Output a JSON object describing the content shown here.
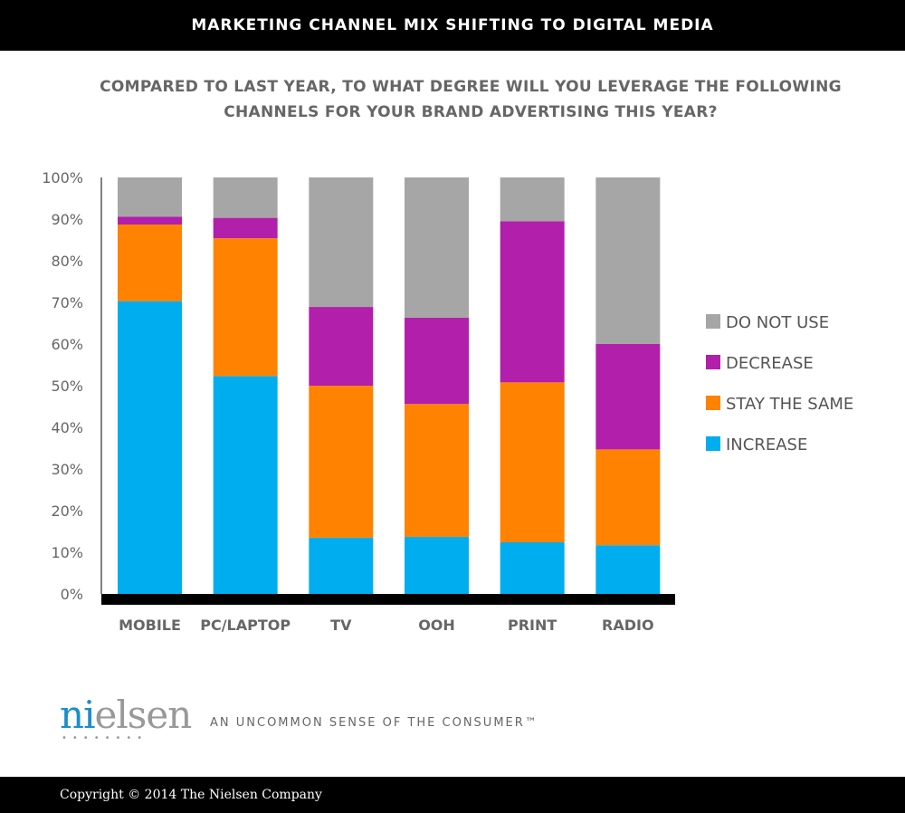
{
  "header": {
    "title": "MARKETING CHANNEL MIX SHIFTING TO DIGITAL MEDIA"
  },
  "chart_data": {
    "type": "bar",
    "stacked": true,
    "title": "COMPARED TO LAST YEAR, TO WHAT DEGREE WILL YOU LEVERAGE THE FOLLOWING CHANNELS FOR YOUR BRAND ADVERTISING THIS YEAR?",
    "xlabel": "",
    "ylabel": "",
    "ylim": [
      0,
      100
    ],
    "yticks": [
      "0%",
      "10%",
      "20%",
      "30%",
      "40%",
      "50%",
      "60%",
      "70%",
      "80%",
      "90%",
      "100%"
    ],
    "categories": [
      "MOBILE",
      "PC/LAPTOP",
      "TV",
      "OOH",
      "PRINT",
      "RADIO"
    ],
    "series": [
      {
        "name": "INCREASE",
        "color": "#00adee",
        "values": [
          70.3,
          52.3,
          13.5,
          13.7,
          12.4,
          11.7
        ]
      },
      {
        "name": "STAY THE SAME",
        "color": "#ff8200",
        "values": [
          18.4,
          33.1,
          36.5,
          31.9,
          38.4,
          23.0
        ]
      },
      {
        "name": "DECREASE",
        "color": "#b11fab",
        "values": [
          1.9,
          4.9,
          18.9,
          20.7,
          38.7,
          25.3
        ]
      },
      {
        "name": "DO NOT USE",
        "color": "#a6a6a6",
        "values": [
          9.4,
          9.7,
          31.1,
          33.7,
          10.5,
          40.0
        ]
      }
    ],
    "legend": {
      "placement": "right",
      "order": [
        "DO NOT USE",
        "DECREASE",
        "STAY THE SAME",
        "INCREASE"
      ]
    },
    "grid": false
  },
  "brand": {
    "logo": "nielsen",
    "tagline": "AN UNCOMMON SENSE OF THE CONSUMER™"
  },
  "footer": {
    "copyright": "Copyright © 2014 The Nielsen Company"
  }
}
